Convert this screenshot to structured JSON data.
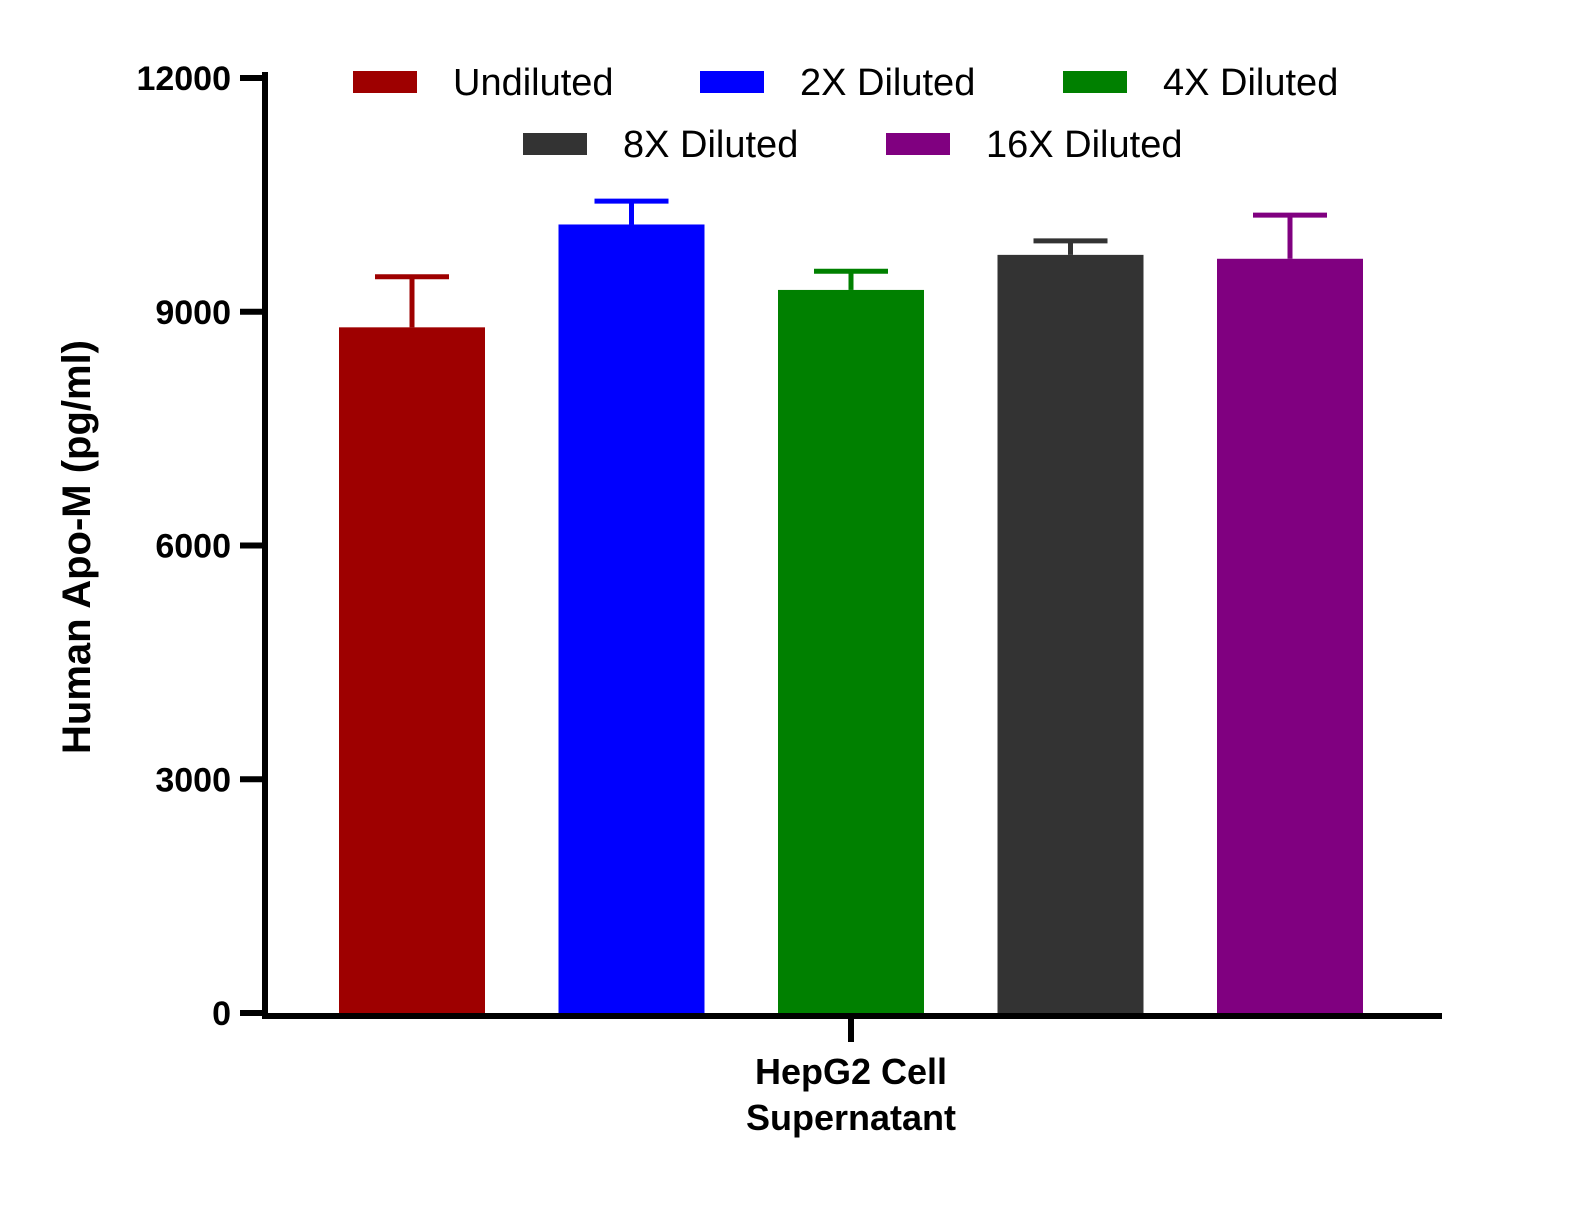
{
  "chart_data": {
    "type": "bar",
    "title": "",
    "ylabel": "Human Apo-M (pg/ml)",
    "xlabel": "",
    "categories": [
      "HepG2 Cell\nSupernatant"
    ],
    "ylim": [
      0,
      12000
    ],
    "yticks": [
      0,
      3000,
      6000,
      9000,
      12000
    ],
    "grid": false,
    "legend_position": "top",
    "series": [
      {
        "name": "Undiluted",
        "value": 8800,
        "error": 650,
        "color": "#9e0000"
      },
      {
        "name": "2X Diluted",
        "value": 10120,
        "error": 300,
        "color": "#0000ff"
      },
      {
        "name": "4X Diluted",
        "value": 9280,
        "error": 240,
        "color": "#008000"
      },
      {
        "name": "8X Diluted",
        "value": 9730,
        "error": 180,
        "color": "#333333"
      },
      {
        "name": "16X Diluted",
        "value": 9680,
        "error": 560,
        "color": "#800080"
      }
    ]
  }
}
